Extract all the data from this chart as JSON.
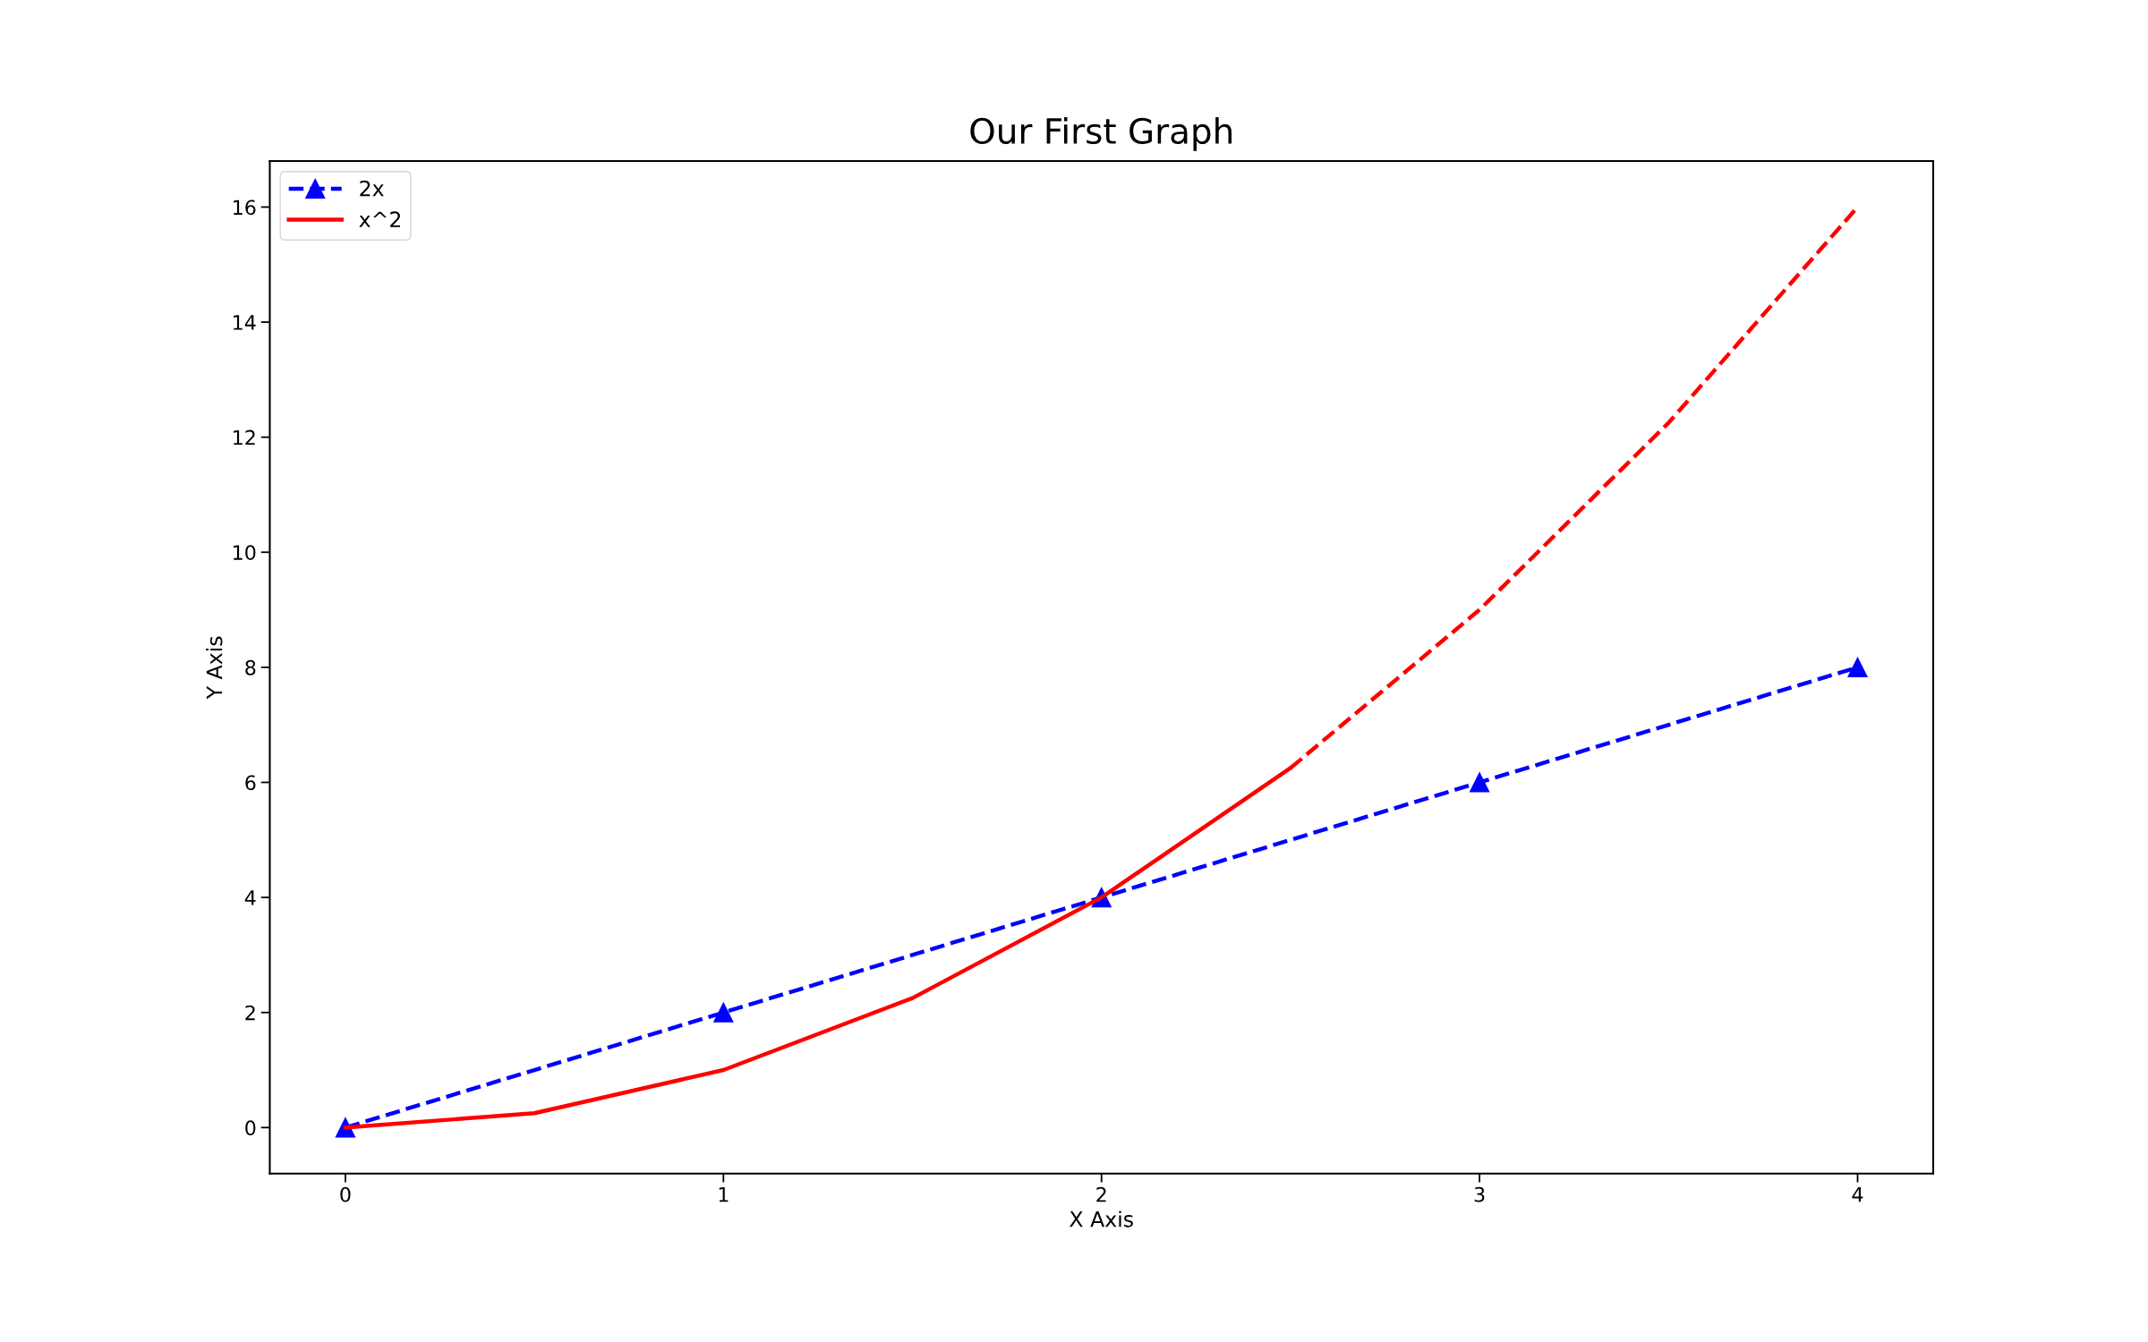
{
  "chart_data": {
    "type": "line",
    "title": "Our First Graph",
    "xlabel": "X Axis",
    "ylabel": "Y Axis",
    "xlim": [
      -0.2,
      4.2
    ],
    "xticks": [
      0,
      1,
      2,
      3,
      4
    ],
    "ylim": [
      -0.8,
      16.8
    ],
    "yticks": [
      0,
      2,
      4,
      6,
      8,
      10,
      12,
      14,
      16
    ],
    "grid": false,
    "legend": "top left",
    "series": [
      {
        "name": "2x",
        "color": "#0000ff",
        "x": [
          0,
          1,
          2,
          3,
          4
        ],
        "values": [
          0,
          2,
          4,
          6,
          8
        ],
        "marker": "triangle",
        "line_style": "dashed"
      },
      {
        "name": "x^2",
        "color": "#ff0000",
        "x": [
          0,
          0.5,
          1,
          1.5,
          2,
          2.5
        ],
        "values": [
          0,
          0.25,
          1,
          2.25,
          4,
          6.25
        ],
        "marker": "none",
        "line_style": "solid"
      },
      {
        "color": "#ff0000",
        "x": [
          2.5,
          3,
          3.5,
          4
        ],
        "values": [
          6.25,
          9,
          12.25,
          16
        ],
        "marker": "none",
        "line_style": "dashed"
      }
    ]
  }
}
